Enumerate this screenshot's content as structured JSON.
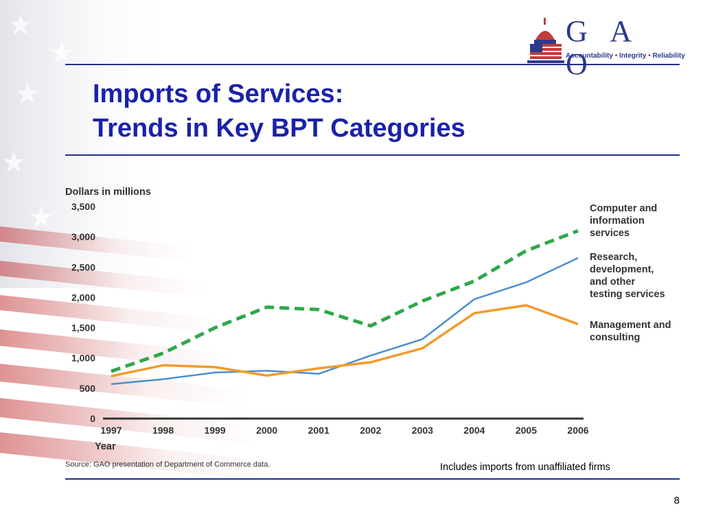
{
  "header": {
    "logo_letters": "G A O",
    "logo_tagline_parts": [
      "Accountability",
      "Integrity",
      "Reliability"
    ],
    "logo_separator": "•"
  },
  "slide": {
    "title_line1": "Imports of Services:",
    "title_line2": "Trends in Key BPT Categories",
    "note": "Includes imports from unaffiliated firms",
    "page_number": "8"
  },
  "colors": {
    "title": "#1a22a8",
    "rule": "#1f2f8a",
    "computer_series": "#2ea84a",
    "research_series": "#4a8fcf",
    "management_series": "#f39a2a"
  },
  "chart_data": {
    "type": "line",
    "ylabel": "Dollars in millions",
    "xlabel": "Year",
    "source": "Source: GAO presentation of Department of Commerce data.",
    "x": [
      "1997",
      "1998",
      "1999",
      "2000",
      "2001",
      "2002",
      "2003",
      "2004",
      "2005",
      "2006"
    ],
    "ylim": [
      0,
      3500
    ],
    "yticks": [
      0,
      500,
      1000,
      1500,
      2000,
      2500,
      3000,
      3500
    ],
    "ytick_labels": [
      "0",
      "500",
      "1,000",
      "1,500",
      "2,000",
      "2,500",
      "3,000",
      "3,500"
    ],
    "grid": false,
    "legend_placement": "right, labels at line ends",
    "series": [
      {
        "name": "Computer and information services",
        "legend_lines": [
          "Computer and",
          "information",
          "services"
        ],
        "style": "dashed",
        "values": [
          780,
          1080,
          1500,
          1840,
          1800,
          1530,
          1940,
          2270,
          2770,
          3100
        ]
      },
      {
        "name": "Research, development, and other testing services",
        "legend_lines": [
          "Research,",
          "development,",
          "and other",
          "testing services"
        ],
        "style": "solid",
        "values": [
          570,
          650,
          760,
          790,
          740,
          1040,
          1310,
          1970,
          2250,
          2650
        ]
      },
      {
        "name": "Management and consulting",
        "legend_lines": [
          "Management and",
          "consulting"
        ],
        "style": "solid",
        "values": [
          700,
          880,
          850,
          710,
          830,
          930,
          1160,
          1740,
          1870,
          1560
        ]
      }
    ]
  }
}
